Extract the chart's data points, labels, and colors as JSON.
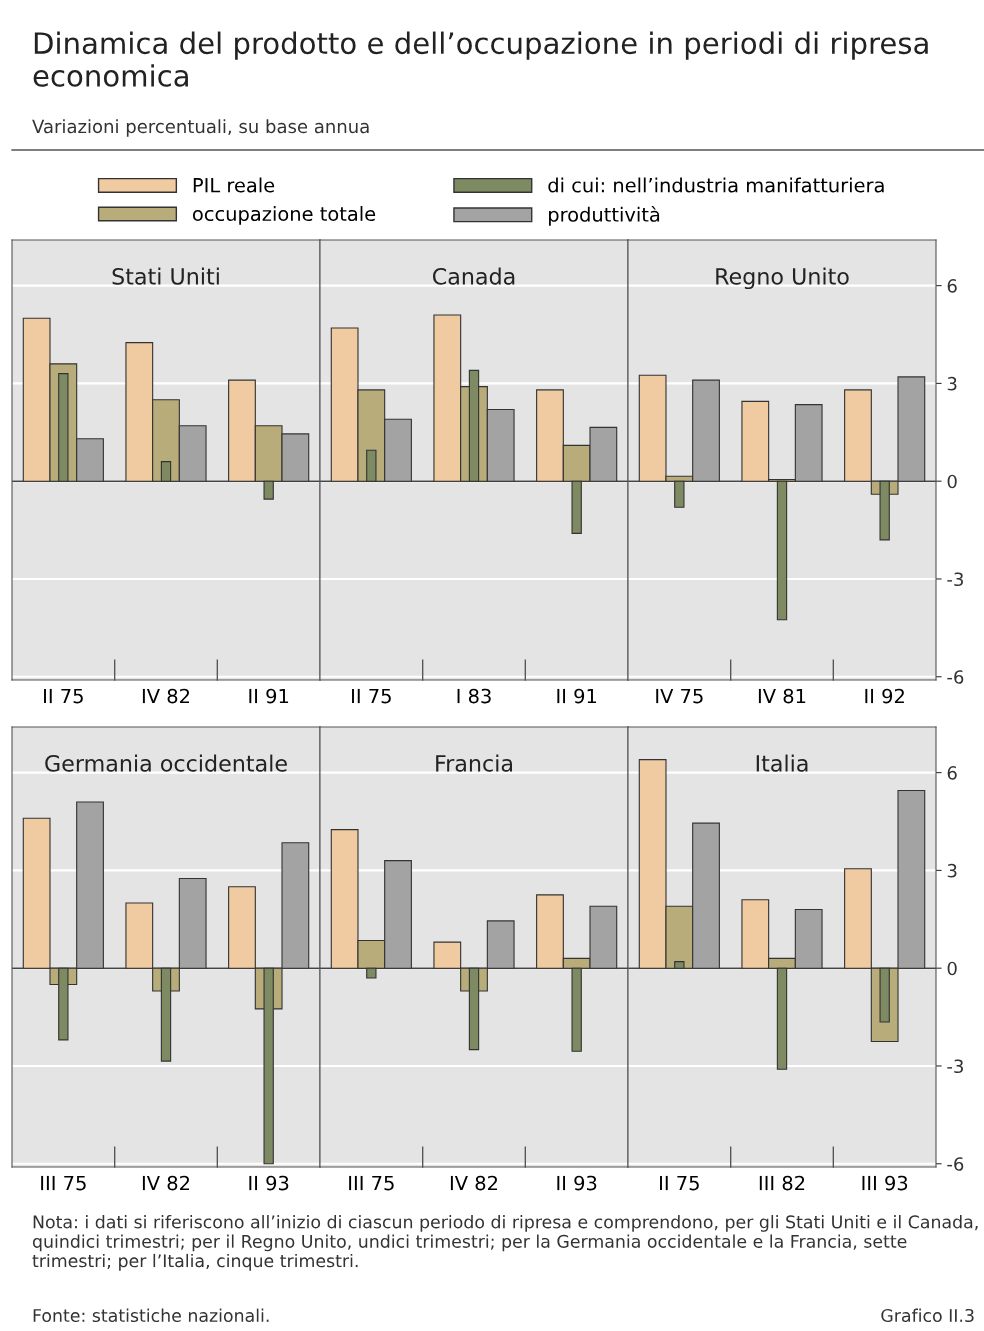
{
  "chart_data": [
    {
      "type": "bar",
      "title": "Stati Uniti",
      "categories": [
        "II 75",
        "IV 82",
        "II 91"
      ],
      "series": [
        {
          "name": "PIL reale",
          "color": "#f0caa0",
          "values": [
            5.0,
            4.25,
            3.1
          ]
        },
        {
          "name": "occupazione totale",
          "color": "#b8ad7a",
          "values": [
            3.6,
            2.5,
            1.7
          ]
        },
        {
          "name": "di cui: nell’industria manifatturiera",
          "color": "#7d8a62",
          "values": [
            3.3,
            0.6,
            -0.55
          ]
        },
        {
          "name": "produttività",
          "color": "#a3a3a3",
          "values": [
            1.3,
            1.7,
            1.45
          ]
        }
      ],
      "ylim": [
        -6.1,
        7.4
      ],
      "yticks": [
        -6,
        -3,
        0,
        3,
        6
      ],
      "grid": "y",
      "tick_labels": "x",
      "legend": "top",
      "ref_lines": [
        {
          "axis": "y",
          "value": 0,
          "color": "#444444"
        }
      ],
      "subtitle": "Variazioni percentuali, su base annua",
      "annotations": [
        "Dinamica del prodotto e dell’occupazione in periodi di ripresa economica",
        "Nota: i dati si riferiscono all’inizio di ciascun periodo di ripresa e comprendono, per gli Stati Uniti e il Canada, quindici trimestri; per il Regno Unito, undici trimestri; per la Germania occidentale e la Francia, sette trimestri; per l’Italia, cinque trimestri.",
        "Fonte: statistiche nazionali.",
        "Grafico II.3"
      ]
    },
    {
      "type": "bar",
      "title": "Canada",
      "categories": [
        "II 75",
        "I 83",
        "II 91"
      ],
      "series": [
        {
          "color": "#f0caa0",
          "values": [
            4.7,
            5.1,
            2.8
          ]
        },
        {
          "color": "#b8ad7a",
          "values": [
            2.8,
            2.9,
            1.1
          ]
        },
        {
          "color": "#7d8a62",
          "values": [
            0.95,
            3.4,
            -1.6
          ]
        },
        {
          "color": "#a3a3a3",
          "values": [
            1.9,
            2.2,
            1.65
          ]
        }
      ],
      "ylim": [
        -6.1,
        7.4
      ],
      "yticks": [
        -6,
        -3,
        0,
        3,
        6
      ],
      "grid": "y",
      "tick_labels": "x",
      "ref_lines": [
        {
          "axis": "y",
          "value": 0,
          "color": "#444444"
        }
      ]
    },
    {
      "type": "bar",
      "title": "Regno Unito",
      "categories": [
        "IV 75",
        "IV 81",
        "II 92"
      ],
      "series": [
        {
          "color": "#f0caa0",
          "values": [
            3.25,
            2.45,
            2.8
          ]
        },
        {
          "color": "#b8ad7a",
          "values": [
            0.15,
            0.05,
            -0.4
          ]
        },
        {
          "color": "#7d8a62",
          "values": [
            -0.8,
            -4.25,
            -1.8
          ]
        },
        {
          "color": "#a3a3a3",
          "values": [
            3.1,
            2.35,
            3.2
          ]
        }
      ],
      "ylim": [
        -6.1,
        7.4
      ],
      "yticks": [
        -6,
        -3,
        0,
        3,
        6
      ],
      "grid": "y",
      "ref_lines": [
        {
          "axis": "y",
          "value": 0,
          "color": "#444444"
        }
      ]
    },
    {
      "type": "bar",
      "title": "Germania occidentale",
      "categories": [
        "III 75",
        "IV 82",
        "II 93"
      ],
      "series": [
        {
          "color": "#f0caa0",
          "values": [
            4.6,
            2.0,
            2.5
          ]
        },
        {
          "color": "#b8ad7a",
          "values": [
            -0.5,
            -0.7,
            -1.25
          ]
        },
        {
          "color": "#7d8a62",
          "values": [
            -2.2,
            -2.85,
            -6.0
          ]
        },
        {
          "color": "#a3a3a3",
          "values": [
            5.1,
            2.75,
            3.85
          ]
        }
      ],
      "ylim": [
        -6.1,
        7.4
      ],
      "yticks": [
        -6,
        -3,
        0,
        3,
        6
      ],
      "grid": "y",
      "tick_labels": "x",
      "ref_lines": [
        {
          "axis": "y",
          "value": 0,
          "color": "#444444"
        }
      ]
    },
    {
      "type": "bar",
      "title": "Francia",
      "categories": [
        "III 75",
        "IV 82",
        "II 93"
      ],
      "series": [
        {
          "color": "#f0caa0",
          "values": [
            4.25,
            0.8,
            2.25
          ]
        },
        {
          "color": "#b8ad7a",
          "values": [
            0.85,
            -0.7,
            0.3
          ]
        },
        {
          "color": "#7d8a62",
          "values": [
            -0.3,
            -2.5,
            -2.55
          ]
        },
        {
          "color": "#a3a3a3",
          "values": [
            3.3,
            1.45,
            1.9
          ]
        }
      ],
      "ylim": [
        -6.1,
        7.4
      ],
      "yticks": [
        -6,
        -3,
        0,
        3,
        6
      ],
      "grid": "y",
      "tick_labels": "x",
      "ref_lines": [
        {
          "axis": "y",
          "value": 0,
          "color": "#444444"
        }
      ]
    },
    {
      "type": "bar",
      "title": "Italia",
      "categories": [
        "II 75",
        "III 82",
        "III 93"
      ],
      "series": [
        {
          "color": "#f0caa0",
          "values": [
            6.4,
            2.1,
            3.05
          ]
        },
        {
          "color": "#b8ad7a",
          "values": [
            1.9,
            0.3,
            -2.25
          ]
        },
        {
          "color": "#7d8a62",
          "values": [
            0.2,
            -3.1,
            -1.65
          ]
        },
        {
          "color": "#a3a3a3",
          "values": [
            4.45,
            1.8,
            5.45
          ]
        }
      ],
      "ylim": [
        -6.1,
        7.4
      ],
      "yticks": [
        -6,
        -3,
        0,
        3,
        6
      ],
      "grid": "y",
      "ref_lines": [
        {
          "axis": "y",
          "value": 0,
          "color": "#444444"
        }
      ]
    }
  ]
}
